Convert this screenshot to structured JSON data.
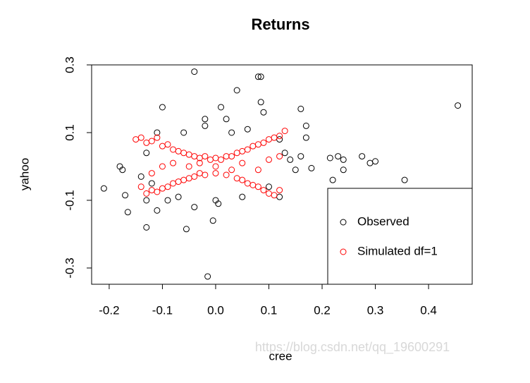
{
  "chart_data": {
    "type": "scatter",
    "title": "Returns",
    "x_label": "cree",
    "y_label": "yahoo",
    "watermark": "https://blog.csdn.net/qq_19600291",
    "xlim": [
      -0.233,
      0.482
    ],
    "ylim": [
      -0.348,
      0.3
    ],
    "xticks": [
      -0.2,
      -0.1,
      {
        "value": 0,
        "label": "0.0"
      },
      0.1,
      0.2,
      0.3,
      0.4
    ],
    "yticks": [
      -0.3,
      -0.1,
      0.1,
      0.3
    ],
    "legend": "bottom-right",
    "series": [
      {
        "name": "Observed",
        "color": "#000000",
        "x": [
          -0.04,
          0.08,
          0.085,
          0.04,
          0.085,
          -0.1,
          0.01,
          0.455,
          0.16,
          0.215,
          0.23,
          0.24,
          0.275,
          0.29,
          0.3,
          0.355,
          0.24,
          0.22,
          -0.21,
          -0.18,
          -0.175,
          -0.17,
          -0.165,
          -0.13,
          -0.055,
          -0.015,
          -0.005,
          0.09,
          0.17,
          0.17,
          0.02,
          -0.02,
          0.12,
          -0.11,
          -0.13,
          0.005,
          -0.04,
          -0.13,
          -0.12,
          -0.11,
          -0.14,
          -0.07,
          0.03,
          0.05,
          0.1,
          0.13,
          0.14,
          0.15,
          0.16,
          0.12,
          -0.06,
          0.0,
          -0.02,
          0.06,
          -0.09,
          0.18
        ],
        "values": [
          0.28,
          0.265,
          0.265,
          0.225,
          0.19,
          0.175,
          0.175,
          0.18,
          0.17,
          0.025,
          0.03,
          0.02,
          0.03,
          0.01,
          0.015,
          -0.04,
          -0.01,
          -0.04,
          -0.065,
          0.0,
          -0.01,
          -0.085,
          -0.135,
          -0.18,
          -0.185,
          -0.325,
          -0.16,
          0.16,
          0.12,
          0.085,
          0.14,
          0.14,
          -0.09,
          -0.13,
          -0.1,
          -0.11,
          -0.12,
          0.04,
          -0.05,
          0.1,
          -0.03,
          -0.09,
          0.1,
          -0.09,
          -0.06,
          0.04,
          0.02,
          -0.01,
          0.03,
          0.08,
          0.1,
          -0.1,
          0.12,
          0.11,
          -0.1,
          -0.005
        ]
      },
      {
        "name": "Simulated df=1",
        "color": "#ff0000",
        "x": [
          -0.15,
          -0.14,
          -0.13,
          -0.12,
          -0.11,
          -0.1,
          -0.09,
          -0.08,
          -0.07,
          -0.06,
          -0.05,
          -0.04,
          -0.03,
          -0.02,
          -0.01,
          0,
          0.01,
          0.02,
          0.03,
          0.04,
          0.05,
          0.06,
          0.07,
          0.08,
          0.09,
          0.1,
          0.11,
          0.12,
          0.13,
          -0.14,
          -0.13,
          -0.12,
          -0.11,
          -0.1,
          -0.09,
          -0.08,
          -0.07,
          -0.06,
          -0.05,
          -0.04,
          -0.03,
          -0.02,
          0,
          0.02,
          0.04,
          0.05,
          0.06,
          0.07,
          0.08,
          0.09,
          0.1,
          0.11,
          0.12,
          -0.05,
          -0.03,
          0,
          0.03,
          0.05,
          -0.08,
          0.08,
          -0.1,
          0.1,
          -0.12,
          0.12
        ],
        "values": [
          0.08,
          0.085,
          0.07,
          0.075,
          0.085,
          0.06,
          0.065,
          0.05,
          0.045,
          0.04,
          0.035,
          0.03,
          0.025,
          0.03,
          0.02,
          0.025,
          0.02,
          0.03,
          0.03,
          0.04,
          0.045,
          0.05,
          0.06,
          0.065,
          0.07,
          0.08,
          0.085,
          0.09,
          0.105,
          -0.06,
          -0.08,
          -0.07,
          -0.075,
          -0.065,
          -0.06,
          -0.05,
          -0.045,
          -0.04,
          -0.035,
          -0.03,
          -0.02,
          -0.025,
          -0.02,
          -0.025,
          -0.035,
          -0.04,
          -0.05,
          -0.055,
          -0.06,
          -0.07,
          -0.08,
          -0.085,
          -0.07,
          0,
          0.01,
          0,
          -0.01,
          0.01,
          0.01,
          -0.01,
          0,
          0.02,
          -0.02,
          0.03
        ]
      }
    ]
  }
}
